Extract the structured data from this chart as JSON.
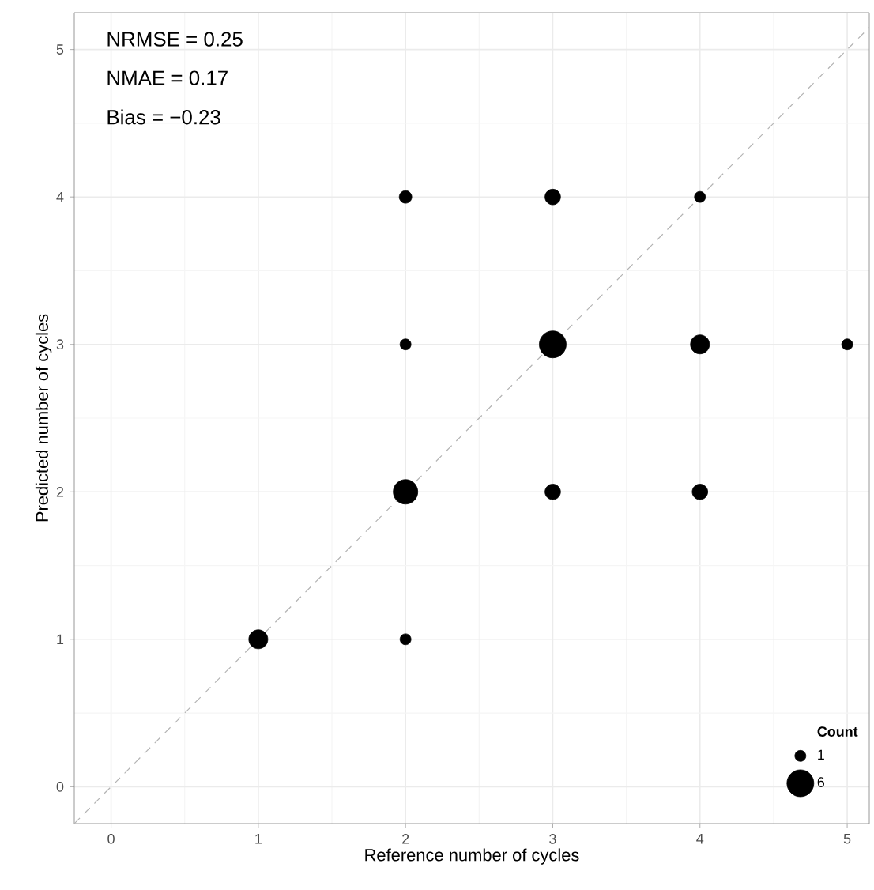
{
  "chart_data": {
    "type": "bubble",
    "xlabel": "Reference number of cycles",
    "ylabel": "Predicted number of cycles",
    "legend_title": "Count",
    "annotations": [
      "NRMSE = 0.25",
      "NMAE = 0.17",
      "Bias = −0.23"
    ],
    "series": [
      {
        "x": [
          1,
          2,
          2,
          2,
          2,
          3,
          3,
          3,
          4,
          4,
          4,
          5
        ],
        "values": [
          1,
          1,
          2,
          3,
          4,
          2,
          3,
          4,
          2,
          3,
          4,
          3
        ],
        "sizes": [
          3,
          1,
          5,
          1,
          1.3,
          2,
          6,
          2,
          2,
          3,
          1,
          1
        ],
        "color": "#000000"
      },
      {
        "type": "line",
        "x": [
          -0.25,
          5.15
        ],
        "values": [
          -0.25,
          5.15
        ],
        "color": "#b3b3b3",
        "line_style": "dashed"
      }
    ],
    "size_legend": [
      1,
      6
    ],
    "xlim": [
      -0.25,
      5.15
    ],
    "ylim": [
      -0.25,
      5.25
    ],
    "xticks": [
      0,
      1,
      2,
      3,
      4,
      5
    ],
    "yticks": [
      0,
      1,
      2,
      3,
      4,
      5
    ],
    "grid": true
  }
}
